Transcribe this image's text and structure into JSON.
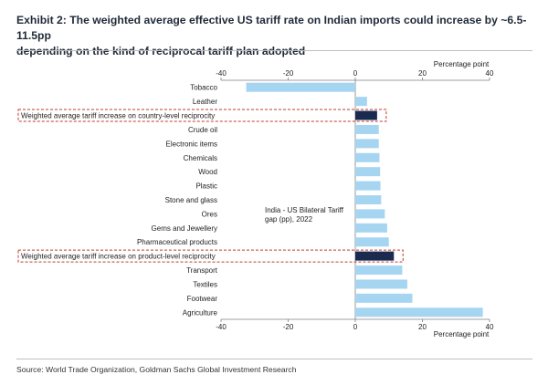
{
  "header": {
    "title_line1": "Exhibit 2: The weighted average effective US tariff rate on Indian imports could increase by ~6.5-11.5pp",
    "title_line2": "depending on the kind of reciprocal tariff plan adopted"
  },
  "footer": {
    "source": "Source: World Trade Organization, Goldman Sachs Global Investment Research"
  },
  "colors": {
    "bar": "#a6d5f2",
    "highlight_bar": "#1b2b4f",
    "highlight_box": "#c0392b",
    "axis": "#7f7f7f"
  },
  "chart_data": {
    "type": "bar",
    "orientation": "horizontal",
    "title": "Exhibit 2: The weighted average effective US tariff rate on Indian imports could increase by ~6.5-11.5pp depending on the kind of reciprocal tariff plan adopted",
    "xlabel_top": "Percentage point",
    "xlabel_bottom": "Percentage point",
    "xlim": [
      -40,
      40
    ],
    "xticks": [
      -40,
      -20,
      0,
      20,
      40
    ],
    "annotation": "India - US Bilateral Tariff gap (pp), 2022",
    "annotation_line1": "India - US Bilateral Tariff",
    "annotation_line2": "gap (pp), 2022",
    "categories": [
      "Tobacco",
      "Leather",
      "Weighted average tariff increase on country-level reciprocity",
      "Crude oil",
      "Electronic items",
      "Chemicals",
      "Wood",
      "Plastic",
      "Stone and glass",
      "Ores",
      "Gems and Jewellery",
      "Pharmaceutical products",
      "Weighted average tariff increase on product-level reciprocity",
      "Transport",
      "Textiles",
      "Footwear",
      "Agriculture"
    ],
    "values": [
      -32.5,
      3.5,
      6.5,
      7.0,
      7.0,
      7.2,
      7.4,
      7.5,
      7.7,
      8.8,
      9.5,
      10.0,
      11.5,
      14.0,
      15.5,
      17.0,
      38.0
    ],
    "highlighted": [
      false,
      false,
      true,
      false,
      false,
      false,
      false,
      false,
      false,
      false,
      false,
      false,
      true,
      false,
      false,
      false,
      false
    ]
  }
}
